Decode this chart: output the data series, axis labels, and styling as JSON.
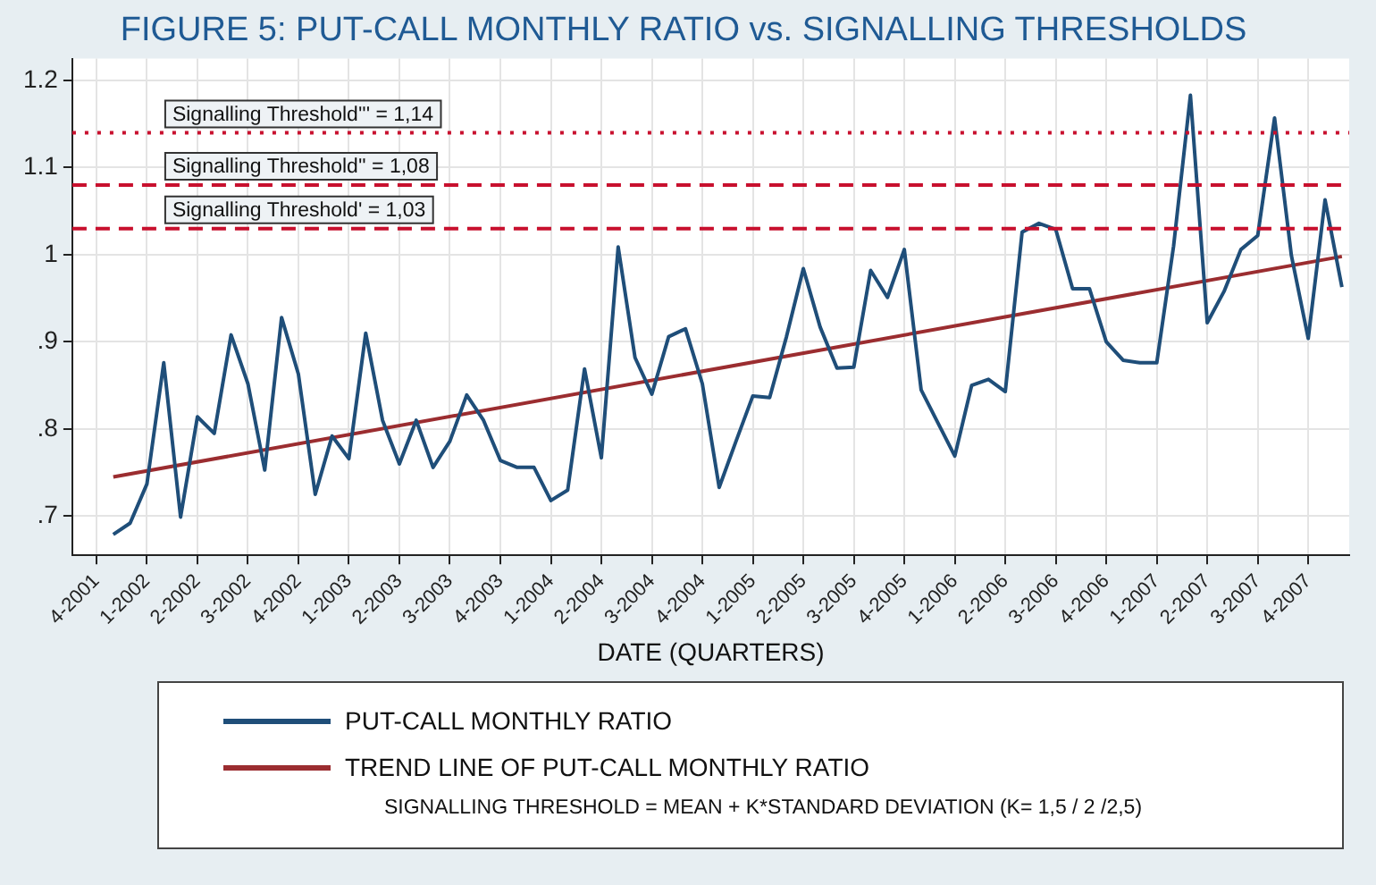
{
  "chart_data": {
    "type": "line",
    "title": "FIGURE 5: PUT-CALL MONTHLY RATIO vs. SIGNALLING THRESHOLDS",
    "xlabel": "DATE (QUARTERS)",
    "x": [
      "2001-11",
      "2001-12",
      "2002-01",
      "2002-02",
      "2002-03",
      "2002-04",
      "2002-05",
      "2002-06",
      "2002-07",
      "2002-08",
      "2002-09",
      "2002-10",
      "2002-11",
      "2002-12",
      "2003-01",
      "2003-02",
      "2003-03",
      "2003-04",
      "2003-05",
      "2003-06",
      "2003-07",
      "2003-08",
      "2003-09",
      "2003-10",
      "2003-11",
      "2003-12",
      "2004-01",
      "2004-02",
      "2004-03",
      "2004-04",
      "2004-05",
      "2004-06",
      "2004-07",
      "2004-08",
      "2004-09",
      "2004-10",
      "2004-11",
      "2004-12",
      "2005-01",
      "2005-02",
      "2005-03",
      "2005-04",
      "2005-05",
      "2005-06",
      "2005-07",
      "2005-08",
      "2005-09",
      "2005-10",
      "2005-11",
      "2005-12",
      "2006-01",
      "2006-02",
      "2006-03",
      "2006-04",
      "2006-05",
      "2006-06",
      "2006-07",
      "2006-08",
      "2006-09",
      "2006-10",
      "2006-11",
      "2006-12",
      "2007-01",
      "2007-02",
      "2007-03",
      "2007-04",
      "2007-05",
      "2007-06",
      "2007-07",
      "2007-08",
      "2007-09",
      "2007-10",
      "2007-11",
      "2007-12"
    ],
    "series": [
      {
        "name": "PUT-CALL MONTHLY RATIO",
        "type": "line",
        "color": "#1f4e79",
        "values": [
          0.679,
          0.692,
          0.737,
          0.876,
          0.699,
          0.814,
          0.795,
          0.908,
          0.852,
          0.753,
          0.928,
          0.863,
          0.725,
          0.792,
          0.766,
          0.91,
          0.81,
          0.76,
          0.81,
          0.756,
          0.786,
          0.839,
          0.81,
          0.764,
          0.756,
          0.756,
          0.718,
          0.73,
          0.869,
          0.767,
          1.009,
          0.882,
          0.84,
          0.906,
          0.915,
          0.852,
          0.733,
          0.786,
          0.838,
          0.836,
          0.906,
          0.984,
          0.917,
          0.87,
          0.871,
          0.982,
          0.951,
          1.006,
          0.845,
          0.807,
          0.769,
          0.85,
          0.857,
          0.843,
          1.026,
          1.036,
          1.029,
          0.961,
          0.961,
          0.9,
          0.879,
          0.876,
          0.876,
          1.01,
          1.183,
          0.922,
          0.958,
          1.006,
          1.022,
          1.157,
          0.999,
          0.904,
          1.063,
          0.963
        ]
      },
      {
        "name": "TREND LINE OF PUT-CALL MONTHLY RATIO",
        "type": "line",
        "color": "#9b2d30",
        "x": [
          "2001-11",
          "2007-12"
        ],
        "values": [
          0.745,
          0.998
        ]
      }
    ],
    "xlim": [
      "2001-08-18",
      "2007-12-14"
    ],
    "xticks": [
      {
        "value": "2001-10",
        "label": "4-2001"
      },
      {
        "value": "2002-01",
        "label": "1-2002"
      },
      {
        "value": "2002-04",
        "label": "2-2002"
      },
      {
        "value": "2002-07",
        "label": "3-2002"
      },
      {
        "value": "2002-10",
        "label": "4-2002"
      },
      {
        "value": "2003-01",
        "label": "1-2003"
      },
      {
        "value": "2003-04",
        "label": "2-2003"
      },
      {
        "value": "2003-07",
        "label": "3-2003"
      },
      {
        "value": "2003-10",
        "label": "4-2003"
      },
      {
        "value": "2004-01",
        "label": "1-2004"
      },
      {
        "value": "2004-04",
        "label": "2-2004"
      },
      {
        "value": "2004-07",
        "label": "3-2004"
      },
      {
        "value": "2004-10",
        "label": "4-2004"
      },
      {
        "value": "2005-01",
        "label": "1-2005"
      },
      {
        "value": "2005-04",
        "label": "2-2005"
      },
      {
        "value": "2005-07",
        "label": "3-2005"
      },
      {
        "value": "2005-10",
        "label": "4-2005"
      },
      {
        "value": "2006-01",
        "label": "1-2006"
      },
      {
        "value": "2006-04",
        "label": "2-2006"
      },
      {
        "value": "2006-07",
        "label": "3-2006"
      },
      {
        "value": "2006-10",
        "label": "4-2006"
      },
      {
        "value": "2007-01",
        "label": "1-2007"
      },
      {
        "value": "2007-04",
        "label": "2-2007"
      },
      {
        "value": "2007-07",
        "label": "3-2007"
      },
      {
        "value": "2007-10",
        "label": "4-2007"
      }
    ],
    "ylim": [
      0.655,
      1.225
    ],
    "yticks": [
      {
        "value": 0.7,
        "label": ".7"
      },
      {
        "value": 0.8,
        "label": ".8"
      },
      {
        "value": 0.9,
        "label": ".9"
      },
      1,
      1.1,
      1.2
    ],
    "ref_lines": [
      {
        "axis": "y",
        "value": 1.14,
        "label": "Signalling Threshold''' = 1,14",
        "color": "#c8102e",
        "line_style": "dotted"
      },
      {
        "axis": "y",
        "value": 1.08,
        "label": "Signalling Threshold'' = 1,08",
        "color": "#c8102e",
        "line_style": "dashed"
      },
      {
        "axis": "y",
        "value": 1.03,
        "label": "Signalling Threshold' = 1,03",
        "color": "#c8102e",
        "line_style": "dashed"
      }
    ],
    "grid": true,
    "legend": "bottom",
    "marker": "none",
    "annotations": [
      "SIGNALLING THRESHOLD = MEAN + K*STANDARD DEVIATION (K= 1,5 / 2 /2,5)"
    ]
  }
}
